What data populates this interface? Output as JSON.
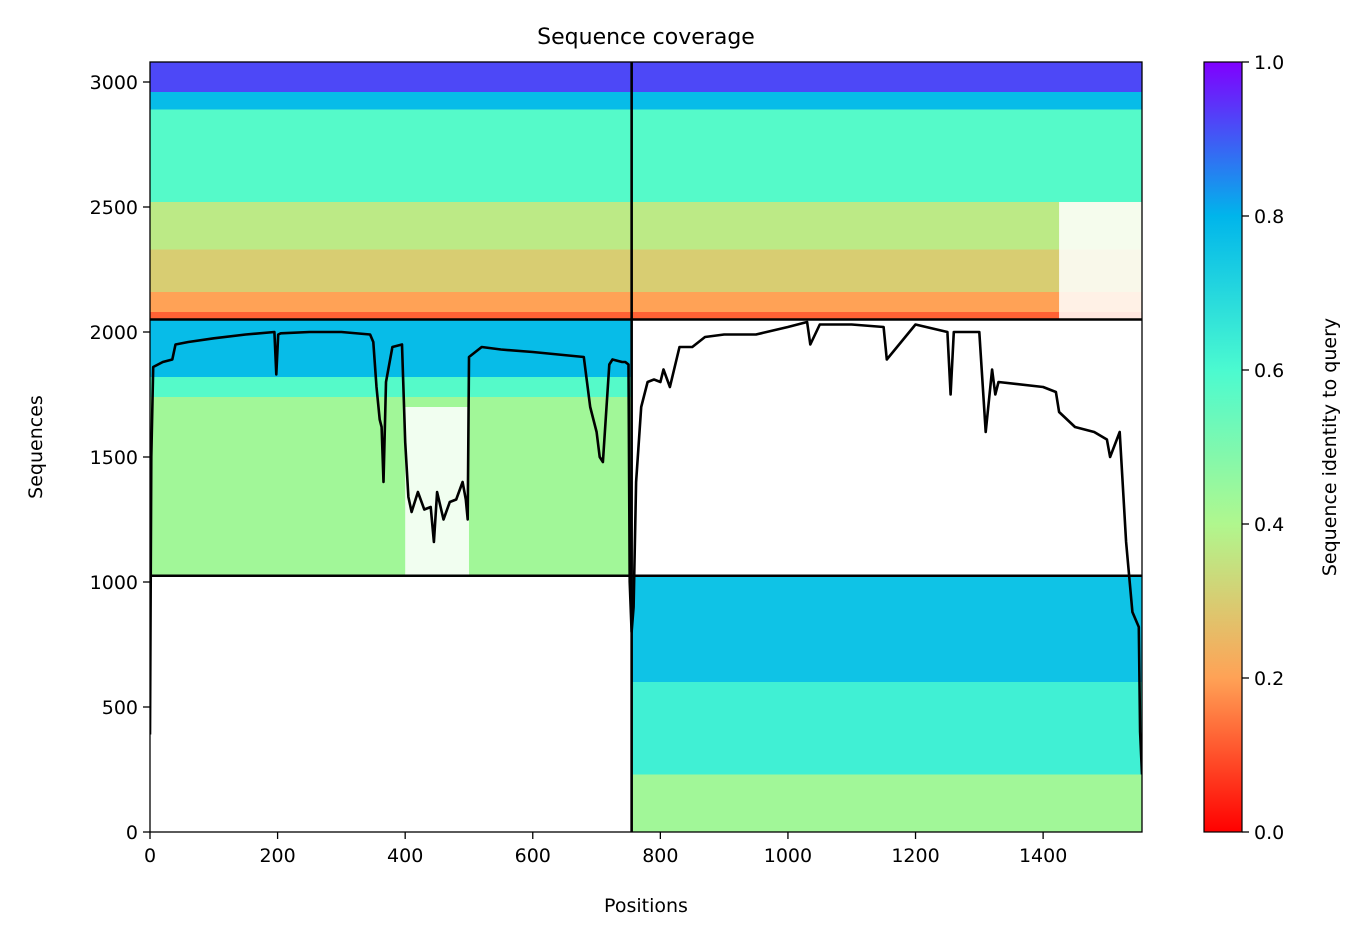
{
  "chart_data": {
    "type": "heatmap",
    "title": "Sequence coverage",
    "xlabel": "Positions",
    "ylabel": "Sequences",
    "xlim": [
      0,
      1555
    ],
    "ylim": [
      0,
      3080
    ],
    "x_ticks": [
      0,
      200,
      400,
      600,
      800,
      1000,
      1200,
      1400
    ],
    "y_ticks": [
      0,
      500,
      1000,
      1500,
      2000,
      2500,
      3000
    ],
    "colorbar": {
      "label": "Sequence identity to query",
      "range": [
        0,
        1
      ],
      "ticks": [
        "0.0",
        "0.2",
        "0.4",
        "0.6",
        "0.8",
        "1.0"
      ],
      "colormap": "rainbow_r",
      "stops": [
        "#ff0000",
        "#ffa256",
        "#b0f78e",
        "#4bfad0",
        "#00b5eb",
        "#8000ff"
      ]
    },
    "grid": false,
    "chain_boundaries": {
      "x": 755,
      "y": [
        1025,
        2050
      ]
    },
    "blocks": [
      {
        "x": [
          0,
          755
        ],
        "y": [
          1025,
          2050
        ],
        "bands": [
          {
            "y": [
              1025,
              1740
            ],
            "identity": 0.43
          },
          {
            "y": [
              1740,
              1820
            ],
            "identity": 0.58
          },
          {
            "y": [
              1820,
              2050
            ],
            "identity": 0.78
          }
        ]
      },
      {
        "x": [
          0,
          755
        ],
        "y": [
          2050,
          3080
        ],
        "bands": [
          {
            "y": [
              2050,
              2080
            ],
            "identity": 0.12
          },
          {
            "y": [
              2080,
              2160
            ],
            "identity": 0.2
          },
          {
            "y": [
              2160,
              2330
            ],
            "identity": 0.3
          },
          {
            "y": [
              2330,
              2520
            ],
            "identity": 0.37
          },
          {
            "y": [
              2520,
              2890
            ],
            "identity": 0.58
          },
          {
            "y": [
              2890,
              2960
            ],
            "identity": 0.78
          },
          {
            "y": [
              2960,
              3080
            ],
            "identity": 0.92
          }
        ]
      },
      {
        "x": [
          755,
          1555
        ],
        "y": [
          0,
          1025
        ],
        "bands": [
          {
            "y": [
              0,
              230
            ],
            "identity": 0.43
          },
          {
            "y": [
              230,
              600
            ],
            "identity": 0.63
          },
          {
            "y": [
              600,
              1025
            ],
            "identity": 0.76
          }
        ]
      },
      {
        "x": [
          755,
          1555
        ],
        "y": [
          2050,
          3080
        ],
        "bands": [
          {
            "y": [
              2050,
              2080
            ],
            "identity": 0.12
          },
          {
            "y": [
              2080,
              2160
            ],
            "identity": 0.2
          },
          {
            "y": [
              2160,
              2330
            ],
            "identity": 0.3
          },
          {
            "y": [
              2330,
              2520
            ],
            "identity": 0.37
          },
          {
            "y": [
              2520,
              2890
            ],
            "identity": 0.58
          },
          {
            "y": [
              2890,
              2960
            ],
            "identity": 0.78
          },
          {
            "y": [
              2960,
              3080
            ],
            "identity": 0.92
          }
        ]
      }
    ],
    "gaps": [
      {
        "x": [
          400,
          500
        ],
        "y": [
          1025,
          1700
        ]
      },
      {
        "x": [
          1425,
          1555
        ],
        "y": [
          2050,
          2520
        ]
      }
    ],
    "coverage_line": {
      "x": [
        0,
        2,
        5,
        20,
        35,
        40,
        60,
        100,
        150,
        195,
        198,
        201,
        205,
        250,
        300,
        345,
        350,
        355,
        360,
        363,
        366,
        370,
        380,
        395,
        400,
        405,
        410,
        420,
        430,
        440,
        445,
        450,
        460,
        470,
        480,
        490,
        495,
        498,
        500,
        520,
        550,
        600,
        680,
        690,
        700,
        705,
        710,
        720,
        725,
        740,
        745,
        750,
        752,
        755,
        758,
        762,
        770,
        780,
        790,
        800,
        805,
        815,
        830,
        850,
        870,
        900,
        950,
        1000,
        1030,
        1035,
        1050,
        1100,
        1150,
        1155,
        1200,
        1250,
        1255,
        1260,
        1300,
        1310,
        1320,
        1325,
        1330,
        1400,
        1420,
        1425,
        1450,
        1480,
        1500,
        1505,
        1520,
        1530,
        1540,
        1545,
        1550,
        1552,
        1555
      ],
      "y": [
        390,
        1500,
        1860,
        1880,
        1890,
        1950,
        1960,
        1975,
        1990,
        2000,
        1830,
        1990,
        1995,
        2000,
        2000,
        1990,
        1960,
        1780,
        1650,
        1620,
        1400,
        1800,
        1940,
        1950,
        1560,
        1340,
        1280,
        1360,
        1290,
        1300,
        1160,
        1360,
        1250,
        1320,
        1330,
        1400,
        1330,
        1250,
        1900,
        1940,
        1930,
        1920,
        1900,
        1700,
        1600,
        1500,
        1480,
        1870,
        1890,
        1880,
        1880,
        1870,
        1000,
        800,
        900,
        1400,
        1700,
        1800,
        1810,
        1800,
        1850,
        1780,
        1940,
        1940,
        1980,
        1990,
        1990,
        2020,
        2040,
        1950,
        2030,
        2030,
        2020,
        1890,
        2030,
        2000,
        1750,
        2000,
        2000,
        1600,
        1850,
        1750,
        1800,
        1780,
        1760,
        1680,
        1620,
        1600,
        1570,
        1500,
        1600,
        1160,
        880,
        850,
        820,
        400,
        230
      ]
    }
  }
}
